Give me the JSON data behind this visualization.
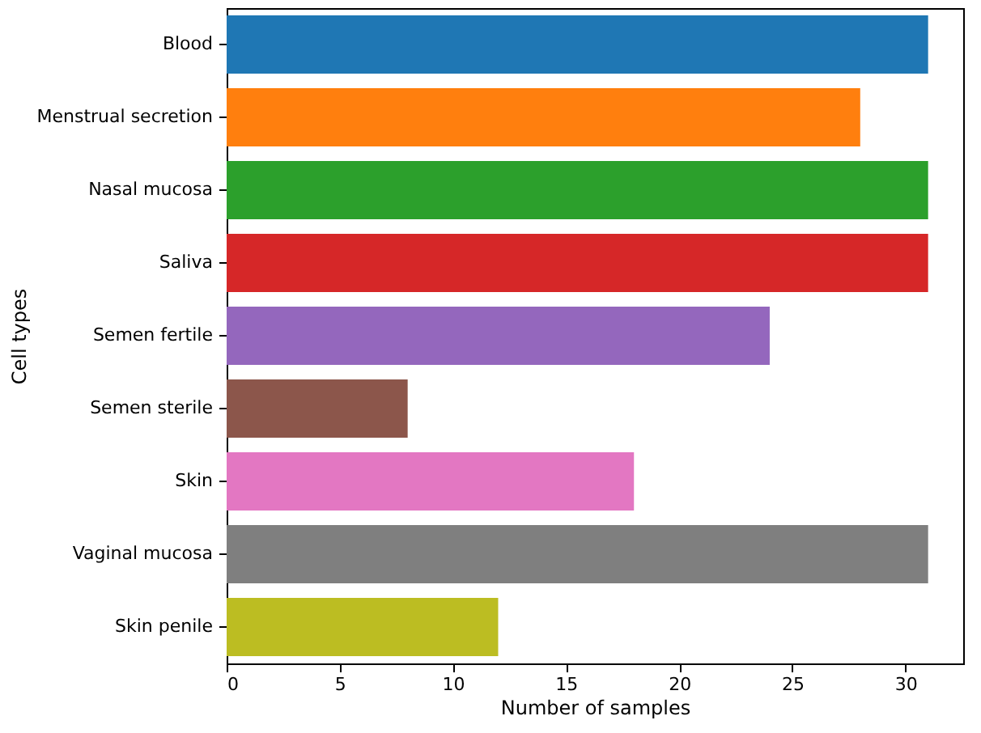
{
  "chart_data": {
    "type": "bar",
    "orientation": "horizontal",
    "xlabel": "Number of samples",
    "ylabel": "Cell types",
    "categories": [
      "Blood",
      "Menstrual secretion",
      "Nasal mucosa",
      "Saliva",
      "Semen fertile",
      "Semen sterile",
      "Skin",
      "Vaginal mucosa",
      "Skin penile"
    ],
    "values": [
      31,
      28,
      31,
      31,
      24,
      8,
      18,
      31,
      12
    ],
    "colors": [
      "#1f77b4",
      "#ff7f0e",
      "#2ca02c",
      "#d62728",
      "#9467bd",
      "#8c564b",
      "#e377c2",
      "#7f7f7f",
      "#bcbd22"
    ],
    "xlim": [
      0,
      32.55
    ],
    "xticks": [
      0,
      5,
      10,
      15,
      20,
      25,
      30
    ],
    "grid": false
  }
}
